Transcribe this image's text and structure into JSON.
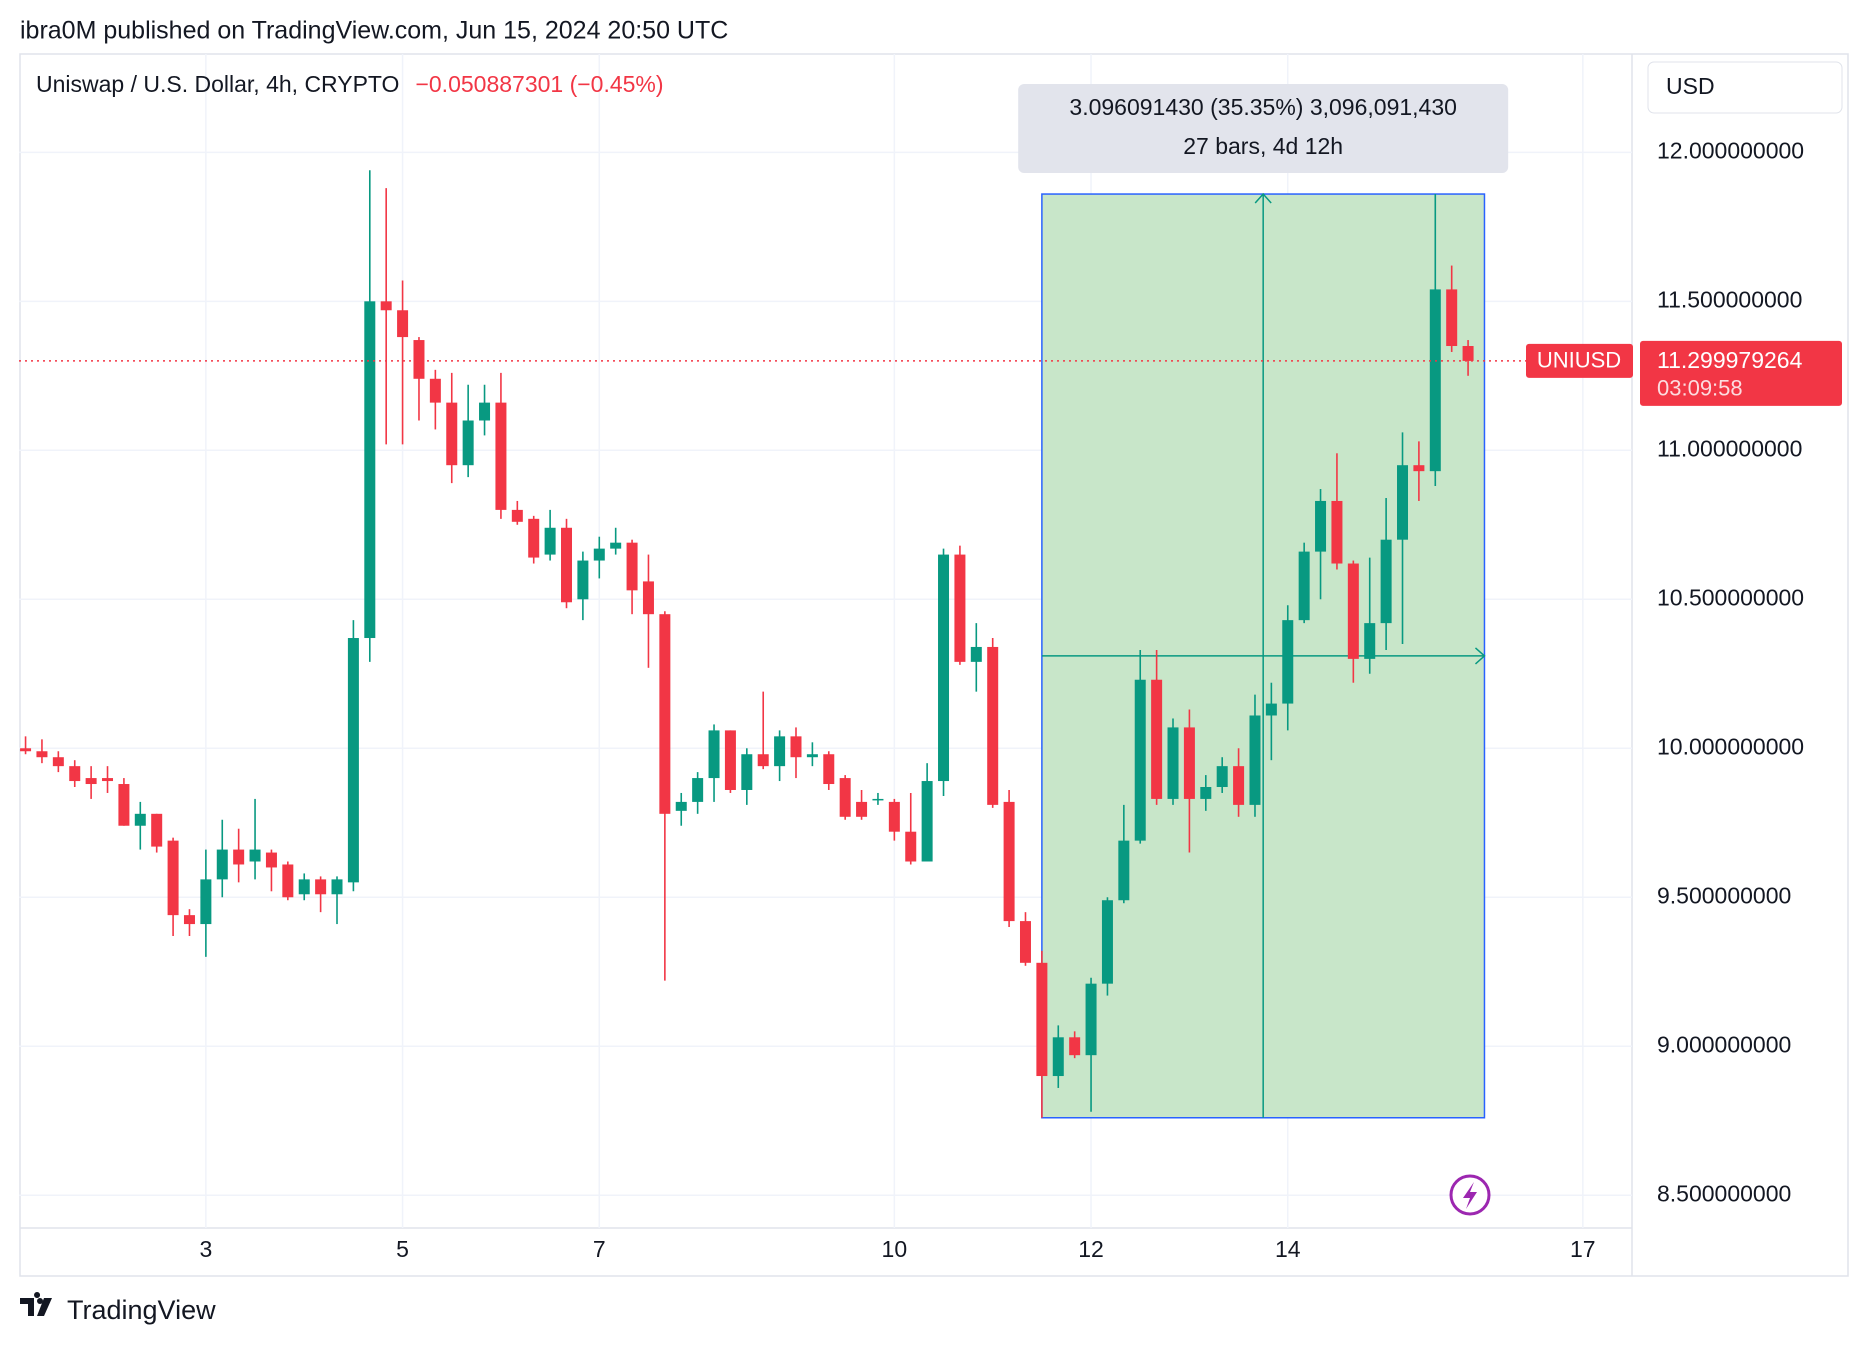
{
  "header": {
    "publisher": "ibra0M published on TradingView.com, Jun 15, 2024 20:50 UTC"
  },
  "footer": {
    "brand": "TradingView"
  },
  "chart_data": {
    "type": "candlestick",
    "title": "Uniswap / U.S. Dollar, 4h, CRYPTO",
    "change": "−0.050887301 (−0.45%)",
    "currency": "USD",
    "symbol": "UNIUSD",
    "countdown": "03:09:58",
    "last_price": 11.299979264,
    "up_color": "#089981",
    "down_color": "#f23645",
    "grid": true,
    "xlim": [
      1.1,
      17.5
    ],
    "xticks": [
      3,
      5,
      7,
      10,
      12,
      14,
      17
    ],
    "ylim": [
      8.39,
      12.33
    ],
    "yticks": [
      {
        "value": 8.5,
        "label": "8.500000000"
      },
      {
        "value": 9,
        "label": "9.000000000"
      },
      {
        "value": 9.5,
        "label": "9.500000000"
      },
      {
        "value": 10,
        "label": "10.000000000"
      },
      {
        "value": 10.5,
        "label": "10.500000000"
      },
      {
        "value": 11,
        "label": "11.000000000"
      },
      {
        "value": 11.5,
        "label": "11.500000000"
      },
      {
        "value": 12,
        "label": "12.000000000"
      }
    ],
    "x": [
      1.1667,
      1.3333,
      1.5,
      1.6667,
      1.8333,
      2,
      2.1667,
      2.3333,
      2.5,
      2.6667,
      2.8333,
      3,
      3.1667,
      3.3333,
      3.5,
      3.6667,
      3.8333,
      4,
      4.1667,
      4.3333,
      4.5,
      4.6667,
      4.8333,
      5,
      5.1667,
      5.3333,
      5.5,
      5.6667,
      5.8333,
      6,
      6.1667,
      6.3333,
      6.5,
      6.6667,
      6.8333,
      7,
      7.1667,
      7.3333,
      7.5,
      7.6667,
      7.8333,
      8,
      8.1667,
      8.3333,
      8.5,
      8.6667,
      8.8333,
      9,
      9.1667,
      9.3333,
      9.5,
      9.6667,
      9.8333,
      10,
      10.1667,
      10.3333,
      10.5,
      10.6667,
      10.8333,
      11,
      11.1667,
      11.3333,
      11.5,
      11.6667,
      11.8333,
      12,
      12.1667,
      12.3333,
      12.5,
      12.6667,
      12.8333,
      13,
      13.1667,
      13.3333,
      13.5,
      13.6667,
      13.8333,
      14,
      14.1667,
      14.3333,
      14.5,
      14.6667,
      14.8333,
      15,
      15.1667,
      15.3333,
      15.5,
      15.6667,
      15.8333
    ],
    "open": [
      10.0,
      9.99,
      9.97,
      9.94,
      9.9,
      9.9,
      9.88,
      9.74,
      9.78,
      9.69,
      9.44,
      9.41,
      9.56,
      9.66,
      9.62,
      9.65,
      9.61,
      9.51,
      9.56,
      9.51,
      9.55,
      10.37,
      11.5,
      11.47,
      11.37,
      11.24,
      11.16,
      10.95,
      11.1,
      11.16,
      10.8,
      10.77,
      10.65,
      10.74,
      10.5,
      10.63,
      10.67,
      10.69,
      10.56,
      10.45,
      9.79,
      9.82,
      9.9,
      10.06,
      9.86,
      9.98,
      9.94,
      10.04,
      9.97,
      9.98,
      9.9,
      9.82,
      9.83,
      9.82,
      9.72,
      9.62,
      9.89,
      10.65,
      10.29,
      10.34,
      9.82,
      9.42,
      9.28,
      8.9,
      9.03,
      8.97,
      9.21,
      9.49,
      9.69,
      10.23,
      9.83,
      10.07,
      9.83,
      9.87,
      9.94,
      9.81,
      10.11,
      10.15,
      10.43,
      10.66,
      10.83,
      10.62,
      10.3,
      10.42,
      10.7,
      10.95,
      10.93,
      11.54,
      11.35
    ],
    "high": [
      10.04,
      10.03,
      9.99,
      9.96,
      9.94,
      9.94,
      9.9,
      9.82,
      9.78,
      9.7,
      9.46,
      9.66,
      9.76,
      9.73,
      9.83,
      9.66,
      9.62,
      9.58,
      9.57,
      9.57,
      10.43,
      11.94,
      11.88,
      11.57,
      11.38,
      11.27,
      11.26,
      11.22,
      11.22,
      11.26,
      10.83,
      10.78,
      10.8,
      10.77,
      10.66,
      10.71,
      10.74,
      10.7,
      10.65,
      10.46,
      9.85,
      9.92,
      10.08,
      10.06,
      10.0,
      10.19,
      10.06,
      10.07,
      10.02,
      9.99,
      9.91,
      9.86,
      9.85,
      9.83,
      9.85,
      9.95,
      10.67,
      10.68,
      10.42,
      10.37,
      9.86,
      9.45,
      9.32,
      9.07,
      9.05,
      9.23,
      9.5,
      9.81,
      10.33,
      10.33,
      10.1,
      10.13,
      9.91,
      9.97,
      10.0,
      10.18,
      10.22,
      10.48,
      10.69,
      10.87,
      10.99,
      10.63,
      10.64,
      10.84,
      11.06,
      11.03,
      11.86,
      11.62,
      11.37
    ],
    "low": [
      9.98,
      9.95,
      9.92,
      9.87,
      9.83,
      9.85,
      9.74,
      9.66,
      9.65,
      9.37,
      9.37,
      9.3,
      9.5,
      9.55,
      9.56,
      9.52,
      9.49,
      9.49,
      9.45,
      9.41,
      9.52,
      10.29,
      11.02,
      11.02,
      11.1,
      11.07,
      10.89,
      10.91,
      11.05,
      10.77,
      10.75,
      10.62,
      10.63,
      10.47,
      10.43,
      10.57,
      10.65,
      10.45,
      10.27,
      9.22,
      9.74,
      9.78,
      9.82,
      9.85,
      9.81,
      9.93,
      9.89,
      9.9,
      9.94,
      9.86,
      9.76,
      9.76,
      9.81,
      9.69,
      9.61,
      9.62,
      9.84,
      10.28,
      10.19,
      9.8,
      9.4,
      9.27,
      8.76,
      8.86,
      8.96,
      8.78,
      9.17,
      9.48,
      9.68,
      9.81,
      9.81,
      9.65,
      9.79,
      9.85,
      9.77,
      9.77,
      9.96,
      10.06,
      10.42,
      10.5,
      10.6,
      10.22,
      10.25,
      10.33,
      10.35,
      10.83,
      10.88,
      11.33,
      11.25
    ],
    "close": [
      9.99,
      9.97,
      9.94,
      9.89,
      9.88,
      9.89,
      9.74,
      9.78,
      9.67,
      9.44,
      9.41,
      9.56,
      9.66,
      9.61,
      9.66,
      9.6,
      9.5,
      9.56,
      9.51,
      9.56,
      10.37,
      11.5,
      11.47,
      11.38,
      11.24,
      11.16,
      10.95,
      11.1,
      11.16,
      10.8,
      10.76,
      10.64,
      10.74,
      10.49,
      10.63,
      10.67,
      10.69,
      10.53,
      10.45,
      9.78,
      9.82,
      9.9,
      10.06,
      9.86,
      9.98,
      9.94,
      10.04,
      9.97,
      9.98,
      9.88,
      9.77,
      9.77,
      9.83,
      9.72,
      9.62,
      9.89,
      10.65,
      10.29,
      10.34,
      9.81,
      9.42,
      9.28,
      8.9,
      9.03,
      8.97,
      9.21,
      9.49,
      9.69,
      10.23,
      9.83,
      10.07,
      9.83,
      9.87,
      9.94,
      9.81,
      10.11,
      10.15,
      10.43,
      10.66,
      10.83,
      10.62,
      10.3,
      10.42,
      10.7,
      10.95,
      10.93,
      11.54,
      11.35,
      11.299979264
    ],
    "measure": {
      "x_start": 11.5,
      "x_end": 16.0,
      "low": 8.76,
      "high": 11.86,
      "line1": "3.096091430 (35.35%) 3,096,091,430",
      "line2": "27 bars, 4d 12h",
      "fill": "#c8e6c9",
      "border": "#2962ff"
    }
  }
}
